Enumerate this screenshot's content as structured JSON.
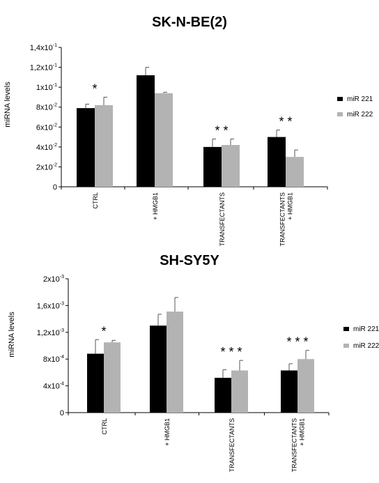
{
  "chart_data": [
    {
      "type": "bar",
      "title": "SK-N-BE(2)",
      "xlabel": "",
      "ylabel": "miRNA levels",
      "categories": [
        "CTRL",
        "+ HMGB1",
        "TRANSFECTANTS",
        "TRANSFECTANTS\n+ HMGB1"
      ],
      "ylim": [
        0,
        0.14
      ],
      "yticks": [
        {
          "value": 0,
          "mant": "0",
          "exp": ""
        },
        {
          "value": 0.02,
          "mant": "2x10",
          "exp": "-2"
        },
        {
          "value": 0.04,
          "mant": "4x10",
          "exp": "-2"
        },
        {
          "value": 0.06,
          "mant": "6x10",
          "exp": "-2"
        },
        {
          "value": 0.08,
          "mant": "8x10",
          "exp": "-2"
        },
        {
          "value": 0.1,
          "mant": "1x10",
          "exp": "-1"
        },
        {
          "value": 0.12,
          "mant": "1,2x10",
          "exp": "-1"
        },
        {
          "value": 0.14,
          "mant": "1,4x10",
          "exp": "-1"
        }
      ],
      "series": [
        {
          "name": "miR 221",
          "color": "#000000",
          "values": [
            0.079,
            0.112,
            0.04,
            0.05
          ],
          "errors": [
            0.004,
            0.008,
            0.008,
            0.007
          ]
        },
        {
          "name": "miR 222",
          "color": "#b3b3b3",
          "values": [
            0.082,
            0.094,
            0.042,
            0.03
          ],
          "errors": [
            0.008,
            0.001,
            0.006,
            0.007
          ]
        }
      ],
      "annotations": [
        {
          "category": 0,
          "text": "*"
        },
        {
          "category": 2,
          "text": "* *"
        },
        {
          "category": 3,
          "text": "* *"
        }
      ],
      "legend": "right",
      "grid": false
    },
    {
      "type": "bar",
      "title": "SH-SY5Y",
      "xlabel": "",
      "ylabel": "miRNA levels",
      "categories": [
        "CTRL",
        "+ HMGB1",
        "TRANSFECTANTS",
        "TRANSFECTANTS\n+ HMGB1"
      ],
      "ylim": [
        0,
        0.002
      ],
      "yticks": [
        {
          "value": 0,
          "mant": "0",
          "exp": ""
        },
        {
          "value": 0.0004,
          "mant": "4x10",
          "exp": "-4"
        },
        {
          "value": 0.0008,
          "mant": "8x10",
          "exp": "-4"
        },
        {
          "value": 0.0012,
          "mant": "1,2x10",
          "exp": "-3"
        },
        {
          "value": 0.0016,
          "mant": "1,6x10",
          "exp": "-3"
        },
        {
          "value": 0.002,
          "mant": "2x10",
          "exp": "-3"
        }
      ],
      "series": [
        {
          "name": "miR 221",
          "color": "#000000",
          "values": [
            0.00088,
            0.0013,
            0.00052,
            0.00063
          ],
          "errors": [
            0.00021,
            0.00017,
            0.00012,
            0.0001
          ]
        },
        {
          "name": "miR 222",
          "color": "#b3b3b3",
          "values": [
            0.00105,
            0.00151,
            0.00063,
            0.0008
          ],
          "errors": [
            3e-05,
            0.00021,
            0.00015,
            0.00013
          ]
        }
      ],
      "annotations": [
        {
          "category": 0,
          "text": "*"
        },
        {
          "category": 2,
          "text": "* * *"
        },
        {
          "category": 3,
          "text": "* * *"
        }
      ],
      "legend": "right",
      "grid": false
    }
  ]
}
